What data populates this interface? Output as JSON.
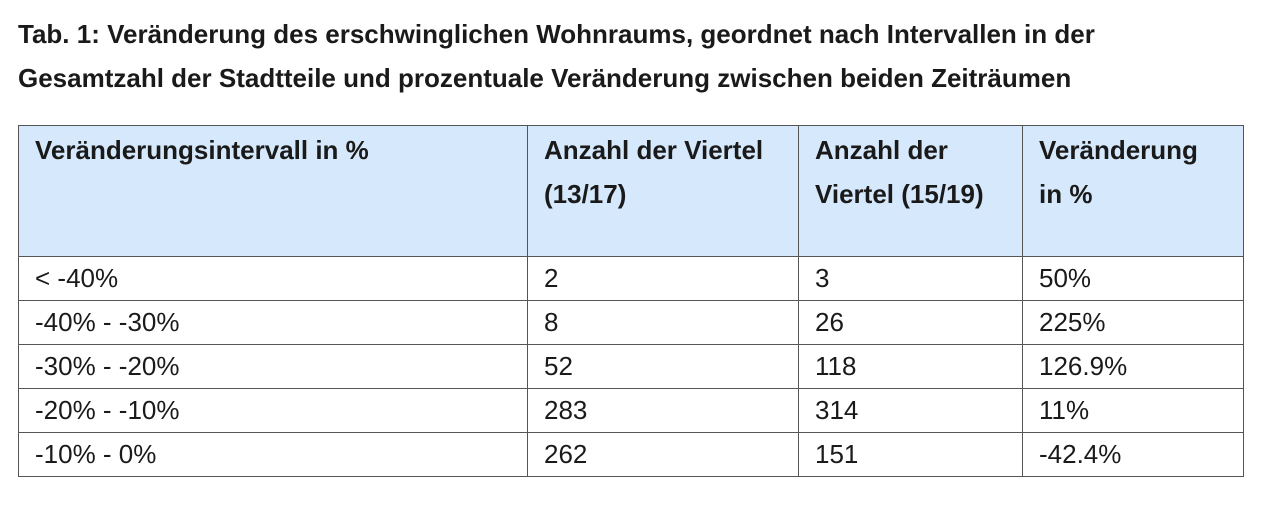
{
  "caption": {
    "line1": "Tab. 1: Veränderung des erschwinglichen Wohnraums, geordnet nach Intervallen in der",
    "line2": "Gesamtzahl der Stadtteile und prozentuale Veränderung zwischen beiden Zeiträumen"
  },
  "table": {
    "headers": [
      "Veränderungsintervall in %",
      "Anzahl der Viertel (13/17)",
      "Anzahl der Viertel (15/19)",
      "Veränderung in %"
    ],
    "rows": [
      [
        "< -40%",
        "2",
        "3",
        "50%"
      ],
      [
        "-40% - -30%",
        "8",
        "26",
        "225%"
      ],
      [
        "-30% - -20%",
        "52",
        "118",
        "126.9%"
      ],
      [
        "-20% - -10%",
        "283",
        "314",
        "11%"
      ],
      [
        "-10% - 0%",
        "262",
        "151",
        "-42.4%"
      ]
    ]
  },
  "colors": {
    "header_background": "#d6e8fb",
    "border": "#555555",
    "text": "#1a1a1a"
  }
}
